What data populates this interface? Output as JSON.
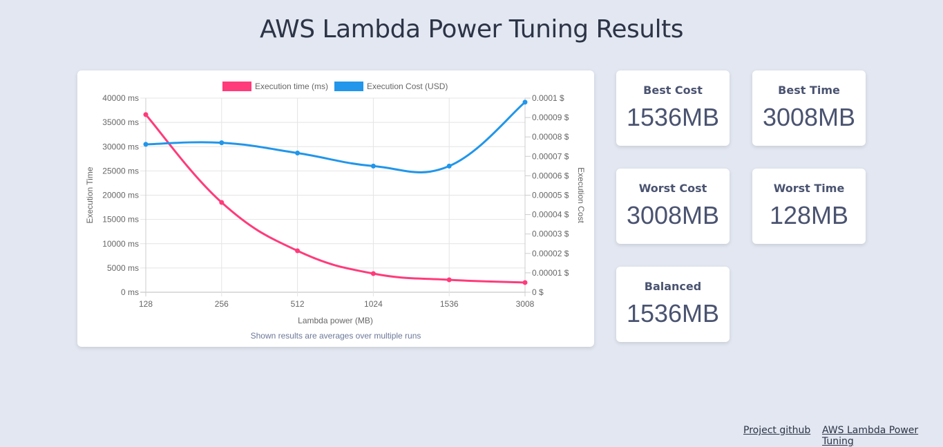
{
  "page": {
    "title": "AWS Lambda Power Tuning Results"
  },
  "cards": [
    {
      "label": "Best Cost",
      "value": "1536MB"
    },
    {
      "label": "Best Time",
      "value": "3008MB"
    },
    {
      "label": "Worst Cost",
      "value": "3008MB"
    },
    {
      "label": "Worst Time",
      "value": "128MB"
    },
    {
      "label": "Balanced",
      "value": "1536MB"
    }
  ],
  "footer": {
    "links": [
      "Project github",
      "AWS Lambda Power Tuning"
    ]
  },
  "chart": {
    "caption": "Shown results are averages over multiple runs"
  },
  "chart_data": {
    "type": "line",
    "categories": [
      "128",
      "256",
      "512",
      "1024",
      "1536",
      "3008"
    ],
    "xlabel": "Lambda power (MB)",
    "series": [
      {
        "name": "Execution time (ms)",
        "axis": "left",
        "color": "#ff3b7b",
        "values": [
          36600,
          18500,
          8540,
          3840,
          2560,
          2000
        ]
      },
      {
        "name": "Execution Cost (USD)",
        "axis": "right",
        "color": "#2196ea",
        "values": [
          7.62e-05,
          7.7e-05,
          7.17e-05,
          6.5e-05,
          6.5e-05,
          9.79e-05
        ]
      }
    ],
    "y_left": {
      "label": "Execution Time",
      "range": [
        0,
        40000
      ],
      "ticks": [
        "0 ms",
        "5000 ms",
        "10000 ms",
        "15000 ms",
        "20000 ms",
        "25000 ms",
        "30000 ms",
        "35000 ms",
        "40000 ms"
      ]
    },
    "y_right": {
      "label": "Execution Cost",
      "range": [
        0,
        0.0001
      ],
      "ticks": [
        "0 $",
        "0.00001 $",
        "0.00002 $",
        "0.00003 $",
        "0.00004 $",
        "0.00005 $",
        "0.00006 $",
        "0.00007 $",
        "0.00008 $",
        "0.00009 $",
        "0.0001 $"
      ]
    },
    "legend": "top",
    "grid": true
  }
}
